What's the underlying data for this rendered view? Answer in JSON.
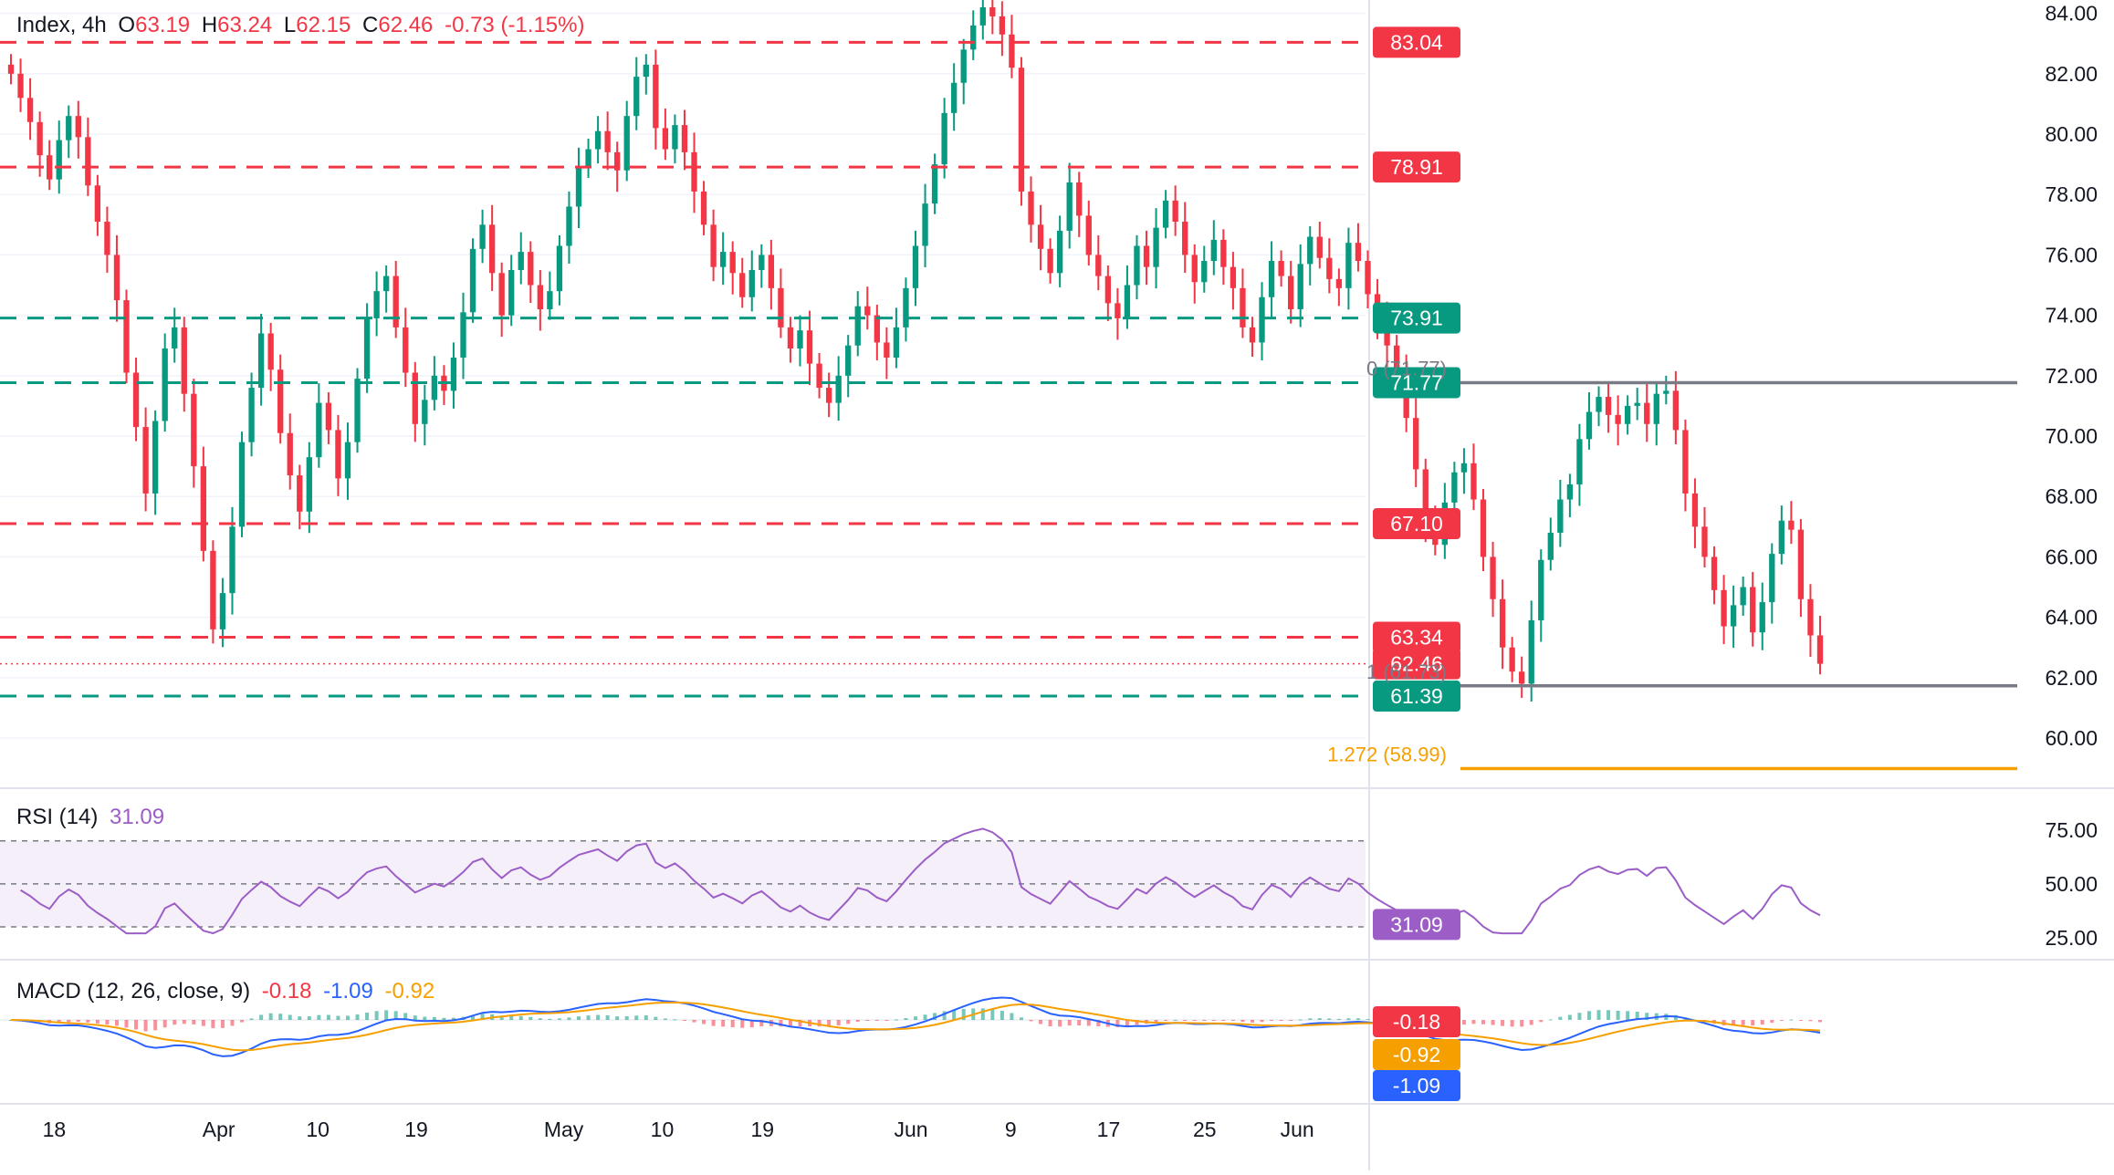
{
  "chart_data": [
    {
      "type": "candlestick",
      "legend": {
        "symbol": "Index, 4h",
        "O_label": "O",
        "O": "63.19",
        "H_label": "H",
        "H": "63.24",
        "L_label": "L",
        "L": "62.15",
        "C_label": "C",
        "C": "62.46",
        "change": "-0.73 (-1.15%)"
      },
      "ylim": [
        58.4,
        84.2
      ],
      "y_ticks": [
        "84.00",
        "82.00",
        "80.00",
        "78.00",
        "76.00",
        "74.00",
        "72.00",
        "70.00",
        "68.00",
        "66.00",
        "64.00",
        "62.00",
        "60.00"
      ],
      "x_ticks": [
        "18",
        "Apr",
        "10",
        "19",
        "May",
        "10",
        "19",
        "Jun",
        "9",
        "17",
        "25",
        "Jun"
      ],
      "horizontal_levels": [
        {
          "value": 83.04,
          "label": "83.04",
          "style": "dashed",
          "color": "#f23645"
        },
        {
          "value": 78.91,
          "label": "78.91",
          "style": "dashed",
          "color": "#f23645"
        },
        {
          "value": 73.91,
          "label": "73.91",
          "style": "dashed",
          "color": "#089981"
        },
        {
          "value": 71.77,
          "label": "71.77",
          "style": "dashed",
          "color": "#089981"
        },
        {
          "value": 67.1,
          "label": "67.10",
          "style": "dashed",
          "color": "#f23645"
        },
        {
          "value": 63.34,
          "label": "63.34",
          "style": "dashed",
          "color": "#f23645"
        },
        {
          "value": 62.46,
          "label": "62.46",
          "style": "dotted",
          "color": "#f23645"
        },
        {
          "value": 61.39,
          "label": "61.39",
          "style": "dashed",
          "color": "#089981"
        }
      ],
      "fibonacci": [
        {
          "label": "0 (71.77)",
          "value": 71.77,
          "color": "#787b86"
        },
        {
          "label": "1 (61.73)",
          "value": 61.73,
          "color": "#787b86"
        },
        {
          "label": "1.272 (58.99)",
          "value": 58.99,
          "color": "#f5a000"
        }
      ],
      "colors": {
        "up": "#089981",
        "down": "#f23645",
        "grid": "#f0f3fa"
      },
      "candles_close": [
        82.0,
        81.2,
        80.4,
        79.3,
        78.5,
        79.8,
        80.6,
        79.9,
        78.3,
        77.1,
        76.0,
        74.5,
        72.1,
        70.3,
        68.1,
        70.5,
        72.9,
        73.6,
        71.4,
        69.0,
        66.2,
        63.6,
        64.8,
        67.0,
        69.8,
        71.6,
        73.4,
        72.2,
        70.1,
        68.7,
        67.5,
        69.3,
        71.1,
        70.2,
        68.6,
        69.8,
        71.9,
        73.9,
        74.8,
        75.3,
        73.6,
        72.1,
        70.4,
        71.2,
        72.0,
        71.5,
        72.6,
        74.1,
        76.2,
        77.0,
        75.4,
        74.0,
        75.5,
        76.1,
        75.0,
        74.2,
        74.8,
        76.3,
        77.6,
        78.9,
        79.5,
        80.1,
        79.4,
        78.8,
        80.6,
        81.9,
        82.3,
        80.2,
        79.5,
        80.3,
        79.4,
        78.1,
        77.0,
        75.6,
        76.1,
        75.4,
        74.6,
        75.5,
        76.0,
        74.9,
        73.6,
        72.9,
        73.5,
        72.4,
        71.6,
        71.1,
        72.0,
        73.0,
        74.3,
        74.0,
        73.1,
        72.6,
        73.6,
        74.9,
        76.3,
        77.7,
        79.0,
        80.7,
        81.7,
        82.8,
        83.6,
        84.2,
        83.9,
        83.3,
        82.2,
        78.1,
        77.0,
        76.2,
        75.4,
        76.8,
        78.4,
        77.3,
        76.0,
        75.3,
        74.4,
        73.9,
        75.0,
        76.3,
        75.6,
        76.9,
        77.8,
        77.1,
        76.0,
        75.1,
        75.8,
        76.5,
        75.6,
        74.9,
        73.6,
        73.1,
        74.6,
        75.8,
        75.3,
        74.2,
        75.7,
        76.6,
        75.9,
        75.2,
        74.9,
        76.4,
        75.8,
        74.7,
        73.8,
        73.0,
        72.2,
        70.6,
        68.9,
        67.2,
        66.4,
        67.8,
        68.8,
        69.1,
        67.9,
        66.0,
        64.6,
        63.0,
        62.2,
        61.8,
        63.9,
        65.9,
        66.8,
        67.9,
        68.4,
        69.9,
        70.8,
        71.3,
        70.7,
        70.4,
        71.0,
        71.1,
        70.4,
        71.4,
        71.5,
        70.2,
        68.1,
        67.0,
        66.0,
        64.9,
        63.7,
        64.4,
        65.0,
        63.5,
        64.5,
        66.1,
        67.2,
        66.9,
        64.6,
        63.4,
        62.46
      ]
    },
    {
      "type": "line",
      "legend": {
        "name": "RSI (14)",
        "value": "31.09"
      },
      "ylim": [
        20,
        80
      ],
      "y_ticks": [
        "75.00",
        "50.00",
        "25.00"
      ],
      "levels": [
        70,
        50,
        30
      ],
      "last_label": "31.09",
      "color": "#9c5ec6"
    },
    {
      "type": "bar",
      "legend": {
        "name": "MACD (12, 26, close, 9)",
        "hist": "-0.18",
        "macd": "-1.09",
        "signal": "-0.92"
      },
      "last_labels": [
        {
          "text": "-0.18",
          "color": "#f23645"
        },
        {
          "text": "-0.92",
          "color": "#f5a000"
        },
        {
          "text": "-1.09",
          "color": "#2962ff"
        }
      ],
      "colors": {
        "macd": "#2962ff",
        "signal": "#f5a000",
        "hist_up": "#089981",
        "hist_down": "#f23645"
      }
    }
  ]
}
